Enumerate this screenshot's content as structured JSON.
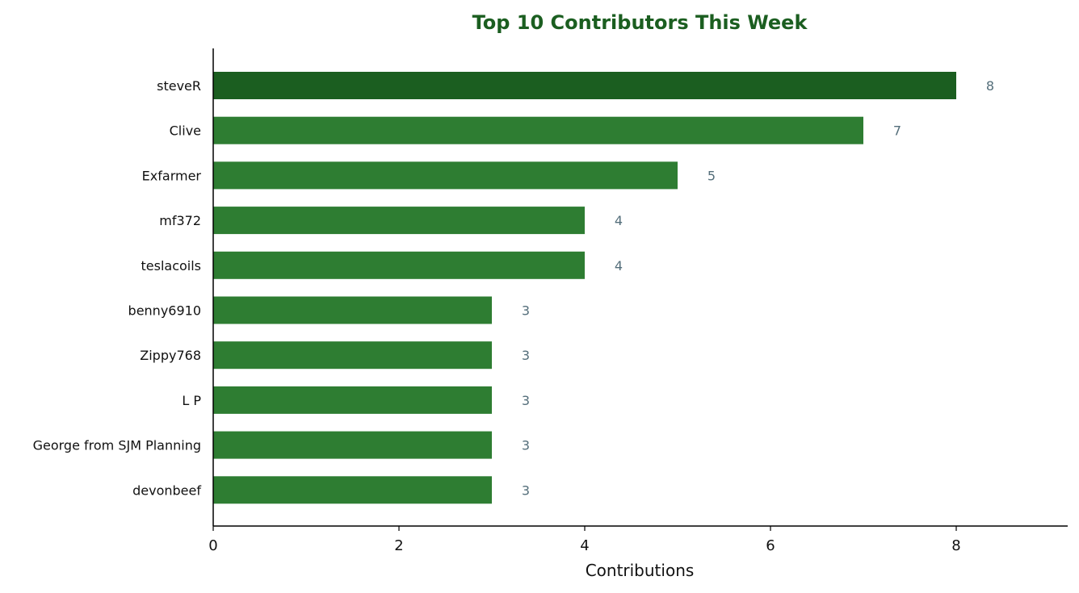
{
  "colors": {
    "title": "#1b5e20",
    "bar": "#2e7d32",
    "bar_top": "#1b5e20",
    "value_label": "#546e7a",
    "axis": "#000000"
  },
  "chart_data": {
    "type": "bar",
    "orientation": "horizontal",
    "title": "Top 10 Contributors This Week",
    "xlabel": "Contributions",
    "ylabel": "",
    "xlim": [
      0,
      9.2
    ],
    "xticks": [
      0,
      2,
      4,
      6,
      8
    ],
    "grid": false,
    "categories": [
      "steveR",
      "Clive",
      "Exfarmer",
      "mf372",
      "teslacoils",
      "benny6910",
      "Zippy768",
      "L P",
      "George from SJM Planning",
      "devonbeef"
    ],
    "values": [
      8,
      7,
      5,
      4,
      4,
      3,
      3,
      3,
      3,
      3
    ],
    "highlight": "steveR"
  }
}
